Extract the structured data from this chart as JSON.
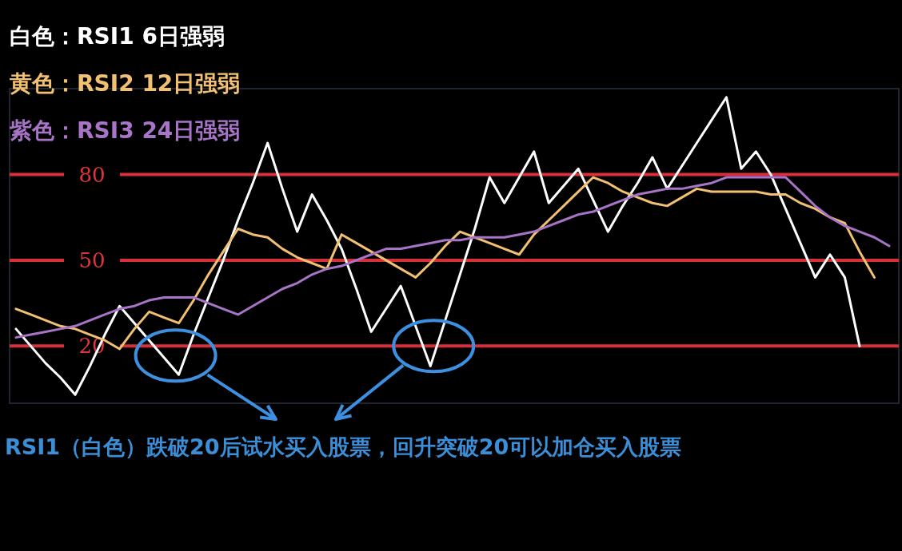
{
  "chart_data": {
    "type": "line",
    "categories": [
      null,
      null,
      null,
      null,
      null,
      null,
      null,
      null,
      null,
      null,
      null,
      null,
      null,
      null,
      null,
      null,
      null,
      null,
      null,
      null,
      null,
      null,
      null,
      null,
      null,
      null,
      null,
      null,
      null,
      null,
      null,
      null,
      null,
      null,
      null,
      null,
      null,
      null,
      null,
      null,
      null,
      null,
      null,
      null,
      null,
      null,
      null,
      null,
      null,
      null,
      null,
      null,
      null,
      null,
      null,
      null,
      null,
      null,
      null,
      null
    ],
    "series": [
      {
        "name": "白色：RSI1 6日强弱",
        "color": "#ffffff",
        "values": [
          26,
          20,
          14,
          9,
          3,
          13,
          24,
          34,
          28,
          22,
          16,
          10,
          24,
          37,
          50,
          64,
          77,
          91,
          75,
          60,
          73,
          64,
          54,
          40,
          25,
          33,
          41,
          27,
          13,
          29,
          45,
          61,
          79,
          70,
          79,
          88,
          70,
          76,
          82,
          71,
          60,
          69,
          77,
          86,
          75,
          83,
          91,
          99,
          107,
          82,
          88,
          80,
          68,
          56,
          44,
          52,
          44,
          20,
          null,
          null
        ]
      },
      {
        "name": "黄色：RSI2 12日强弱",
        "color": "#f2c072",
        "values": [
          33,
          31,
          29,
          27,
          26,
          24,
          22,
          19,
          26,
          32,
          30,
          28,
          36,
          45,
          53,
          61,
          59,
          58,
          54,
          51,
          49,
          47,
          59,
          56,
          53,
          50,
          47,
          44,
          49,
          55,
          60,
          58,
          56,
          54,
          52,
          59,
          64,
          69,
          74,
          79,
          77,
          74,
          72,
          70,
          69,
          72,
          75,
          74,
          74,
          74,
          74,
          73,
          73,
          70,
          68,
          65,
          63,
          53,
          44,
          null
        ]
      },
      {
        "name": "紫色：RSI3 24日强弱",
        "color": "#a874c8",
        "values": [
          23,
          24,
          25,
          26,
          27,
          29,
          31,
          33,
          34,
          36,
          37,
          37,
          37,
          35,
          33,
          31,
          34,
          37,
          40,
          42,
          45,
          47,
          48,
          50,
          52,
          54,
          54,
          55,
          56,
          57,
          57,
          58,
          58,
          58,
          59,
          60,
          62,
          64,
          66,
          67,
          69,
          71,
          73,
          74,
          75,
          75,
          76,
          77,
          79,
          79,
          79,
          79,
          79,
          74,
          69,
          65,
          62,
          60,
          58,
          55
        ]
      }
    ],
    "ylim": [
      0,
      110
    ],
    "yticks": [
      20,
      50,
      80
    ],
    "grid": "y",
    "legend": "top left",
    "line_style": "solid",
    "marker": "none",
    "tick_labels": "y",
    "annotations": [
      "RSI1（白色）跌破20后试水买入股票，回升突破20可以加仓买入股票"
    ]
  }
}
